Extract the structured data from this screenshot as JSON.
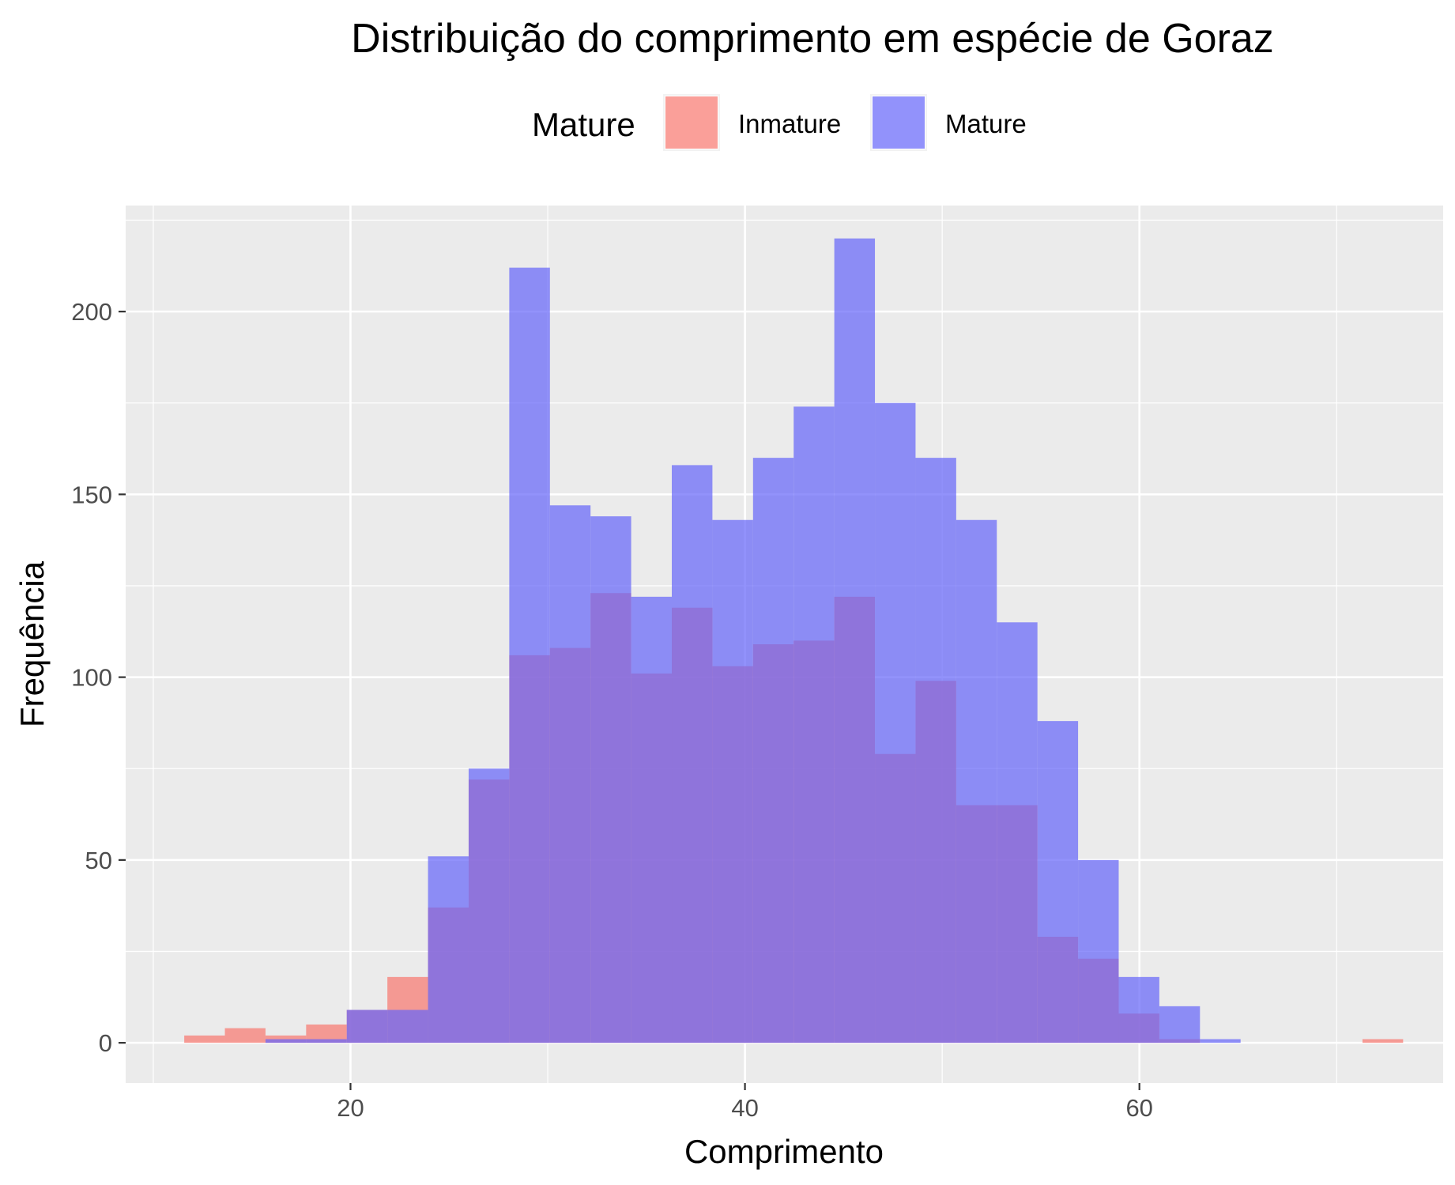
{
  "chart_data": {
    "type": "bar",
    "title": "Distribuição do comprimento em espécie de Goraz",
    "xlabel": "Comprimento",
    "ylabel": "Frequência",
    "xlim": [
      8.6,
      75.4
    ],
    "ylim": [
      -11,
      229
    ],
    "x_ticks": [
      20,
      40,
      60
    ],
    "y_ticks": [
      0,
      50,
      100,
      150,
      200
    ],
    "x_tick_labels": [
      "20",
      "40",
      "60"
    ],
    "y_tick_labels": [
      "0",
      "50",
      "100",
      "150",
      "200"
    ],
    "grid": true,
    "legend": {
      "title": "Mature",
      "position": "top"
    },
    "bin_width": 2.06,
    "bin_centers": [
      12.6,
      14.66,
      16.72,
      18.78,
      20.84,
      22.9,
      24.96,
      27.02,
      29.08,
      31.14,
      33.2,
      35.26,
      37.32,
      39.38,
      41.44,
      43.5,
      45.56,
      47.62,
      49.68,
      51.74,
      53.8,
      55.86,
      57.92,
      59.98,
      62.04,
      64.1,
      66.16,
      68.22,
      70.28,
      72.34
    ],
    "series": [
      {
        "name": "Inmature",
        "color": "#F8766D",
        "values": [
          2,
          4,
          2,
          5,
          9,
          18,
          37,
          72,
          106,
          108,
          123,
          101,
          119,
          103,
          109,
          110,
          122,
          79,
          99,
          65,
          65,
          29,
          23,
          8,
          1,
          0,
          0,
          0,
          0,
          1
        ]
      },
      {
        "name": "Mature",
        "color": "#6464FA",
        "values": [
          0,
          0,
          1,
          1,
          9,
          9,
          51,
          75,
          212,
          147,
          144,
          122,
          158,
          143,
          160,
          174,
          220,
          175,
          160,
          143,
          115,
          88,
          50,
          18,
          10,
          1,
          0,
          0,
          0,
          0
        ]
      }
    ]
  }
}
